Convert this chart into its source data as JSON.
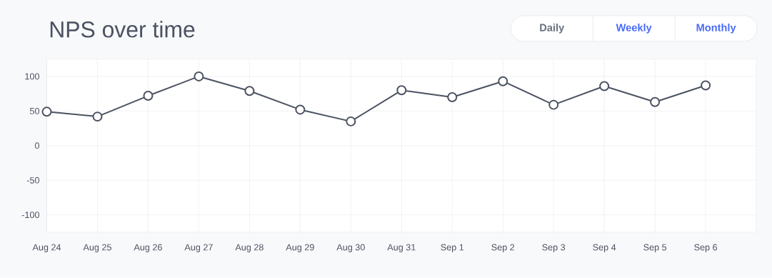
{
  "chart_data": {
    "type": "line",
    "title": "NPS over time",
    "categories": [
      "Aug 24",
      "Aug 25",
      "Aug 26",
      "Aug 27",
      "Aug 28",
      "Aug 29",
      "Aug 30",
      "Aug 31",
      "Sep 1",
      "Sep 2",
      "Sep 3",
      "Sep 4",
      "Sep 5",
      "Sep 6"
    ],
    "series": [
      {
        "color": "#4b5261",
        "values": [
          49,
          42,
          72,
          100,
          79,
          52,
          35,
          80,
          70,
          93,
          59,
          86,
          63,
          87
        ]
      }
    ],
    "ylim": [
      -125,
      125
    ],
    "yticks": [
      -100,
      -50,
      0,
      50,
      100
    ],
    "grid": true,
    "marker": "circle",
    "line_style": "solid",
    "annotations": [
      "Daily",
      "Weekly",
      "Monthly"
    ]
  }
}
